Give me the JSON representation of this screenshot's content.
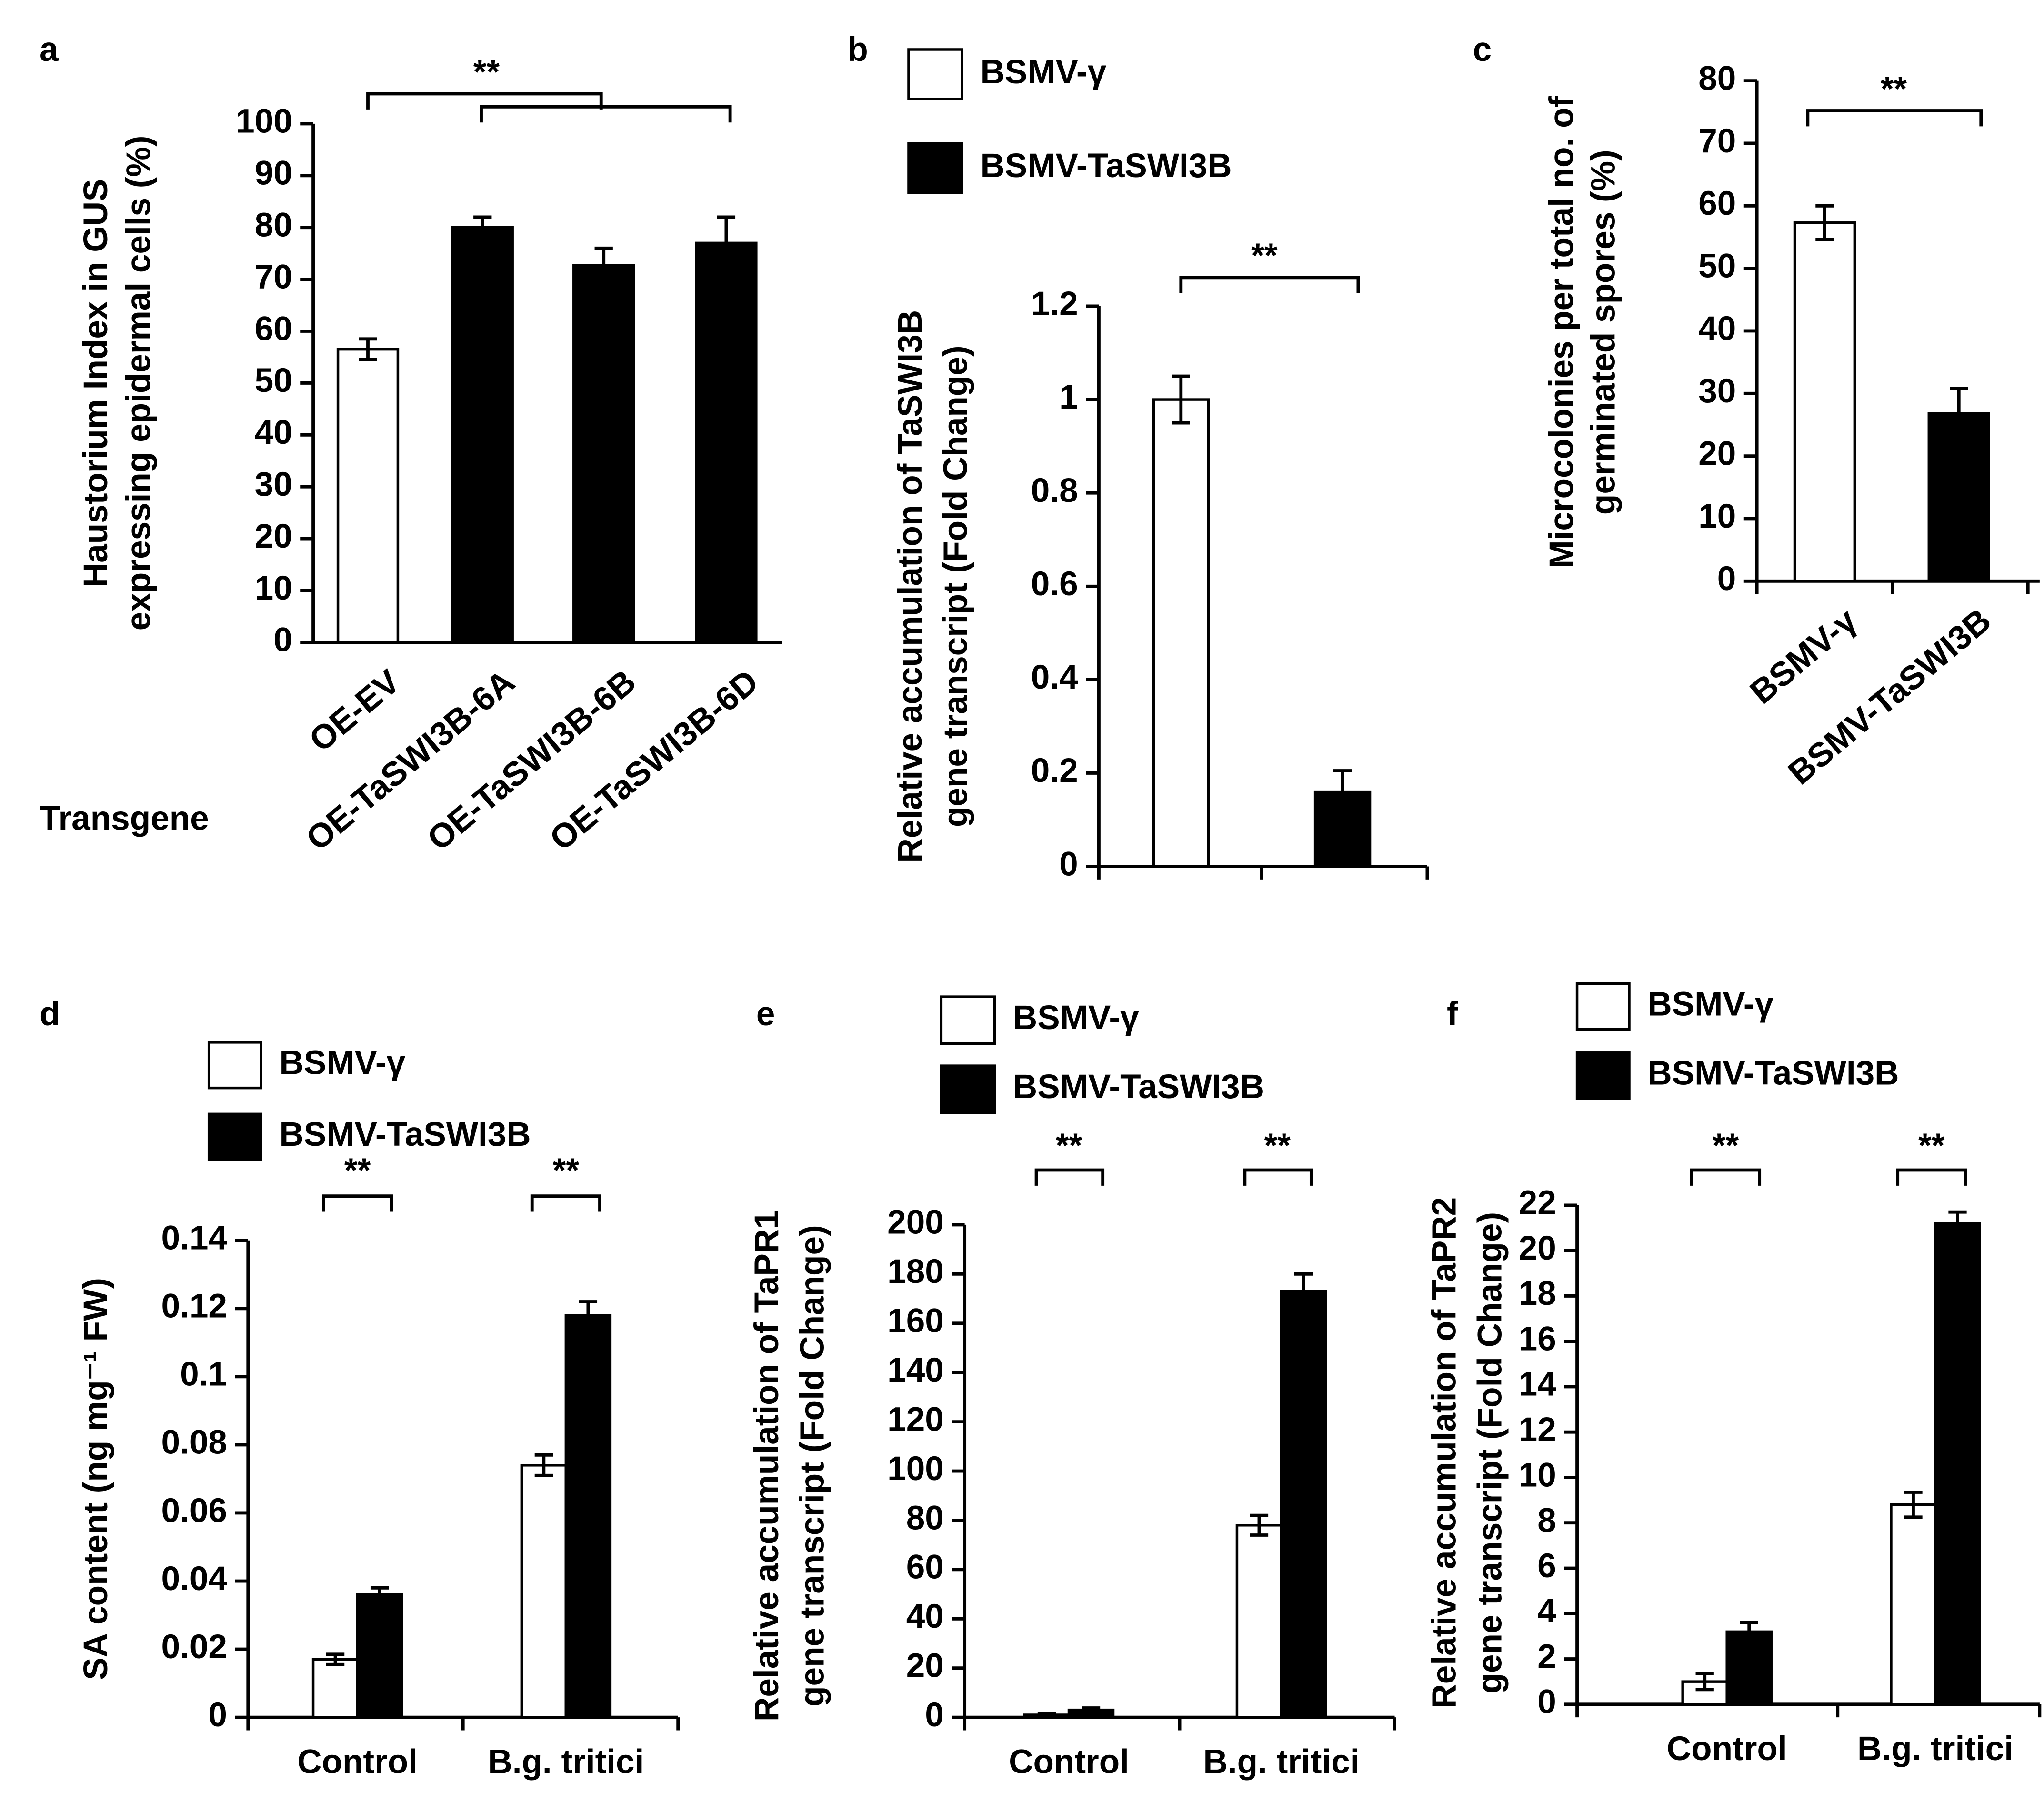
{
  "chart_data": [
    {
      "type": "bar",
      "label": "a",
      "y_label": [
        "Haustorium Index in GUS",
        "expressing  epidermal cells (%)"
      ],
      "x_label": "Transgene",
      "categories": [
        "OE-EV",
        "OE-TaSWI3B-6A",
        "OE-TaSWI3B-6B",
        "OE-TaSWI3B-6D"
      ],
      "values": [
        56.5,
        80,
        72.7,
        77
      ],
      "errors": [
        2,
        2,
        3.3,
        5
      ],
      "colors": [
        "#ffffff",
        "#000000",
        "#000000",
        "#000000"
      ],
      "ylim": [
        0,
        100
      ],
      "yticks": [
        0,
        10,
        20,
        30,
        40,
        50,
        60,
        70,
        80,
        90,
        100
      ],
      "significance": [
        "**"
      ]
    },
    {
      "type": "grouped-bar",
      "label": "b",
      "y_label": [
        "Relative accumulation of TaSWI3B",
        "gene transcript  (Fold Change)"
      ],
      "categories": [
        null
      ],
      "series": [
        {
          "name": "BSMV-γ",
          "color": "#ffffff",
          "values": [
            1.0
          ],
          "errors": [
            0.05
          ]
        },
        {
          "name": "BSMV-TaSWI3B",
          "color": "#000000",
          "values": [
            0.16
          ],
          "errors": [
            0.045
          ]
        }
      ],
      "ylim": [
        0,
        1.2
      ],
      "yticks": [
        0,
        0.2,
        0.4,
        0.6,
        0.8,
        1,
        1.2
      ],
      "significance": [
        "**"
      ]
    },
    {
      "type": "bar",
      "label": "c",
      "y_label": [
        "Microcolonies per total no. of",
        "germinated spores (%)"
      ],
      "categories": [
        "BSMV-γ",
        "BSMV-TaSWI3B"
      ],
      "values": [
        57.3,
        26.8
      ],
      "errors": [
        2.7,
        4
      ],
      "colors": [
        "#ffffff",
        "#000000"
      ],
      "ylim": [
        0,
        80
      ],
      "yticks": [
        0,
        10,
        20,
        30,
        40,
        50,
        60,
        70,
        80
      ],
      "significance": [
        "**"
      ]
    },
    {
      "type": "grouped-bar",
      "label": "d",
      "y_label": [
        "SA content (ng mg⁻¹ FW)"
      ],
      "categories": [
        "Control",
        "B.g. tritici"
      ],
      "series": [
        {
          "name": "BSMV-γ",
          "color": "#ffffff",
          "values": [
            0.017,
            0.074
          ],
          "errors": [
            0.0015,
            0.003
          ]
        },
        {
          "name": "BSMV-TaSWI3B",
          "color": "#000000",
          "values": [
            0.036,
            0.118
          ],
          "errors": [
            0.002,
            0.004
          ]
        }
      ],
      "ylim": [
        0,
        0.14
      ],
      "yticks": [
        0,
        0.02,
        0.04,
        0.06,
        0.08,
        0.1,
        0.12,
        0.14
      ],
      "significance": [
        "**",
        "**"
      ]
    },
    {
      "type": "grouped-bar",
      "label": "e",
      "y_label": [
        "Relative accumulation of TaPR1",
        "gene transcript  (Fold Change)"
      ],
      "categories": [
        "Control",
        "B.g. tritici"
      ],
      "series": [
        {
          "name": "BSMV-γ",
          "color": "#ffffff",
          "values": [
            1,
            78
          ],
          "errors": [
            0.3,
            4
          ]
        },
        {
          "name": "BSMV-TaSWI3B",
          "color": "#000000",
          "values": [
            3,
            173
          ],
          "errors": [
            0.8,
            7
          ]
        }
      ],
      "ylim": [
        0,
        200
      ],
      "yticks": [
        0,
        20,
        40,
        60,
        80,
        100,
        120,
        140,
        160,
        180,
        200
      ],
      "significance": [
        "**",
        "**"
      ]
    },
    {
      "type": "grouped-bar",
      "label": "f",
      "y_label": [
        "Relative accumulation of TaPR2",
        "gene transcript  (Fold Change)"
      ],
      "categories": [
        "Control",
        "B.g. tritici"
      ],
      "series": [
        {
          "name": "BSMV-γ",
          "color": "#ffffff",
          "values": [
            1,
            8.8
          ],
          "errors": [
            0.35,
            0.55
          ]
        },
        {
          "name": "BSMV-TaSWI3B",
          "color": "#000000",
          "values": [
            3.2,
            21.2
          ],
          "errors": [
            0.4,
            0.5
          ]
        }
      ],
      "ylim": [
        0,
        22
      ],
      "yticks": [
        0,
        2,
        4,
        6,
        8,
        10,
        12,
        14,
        16,
        18,
        20,
        22
      ],
      "significance": [
        "**",
        "**"
      ]
    }
  ]
}
